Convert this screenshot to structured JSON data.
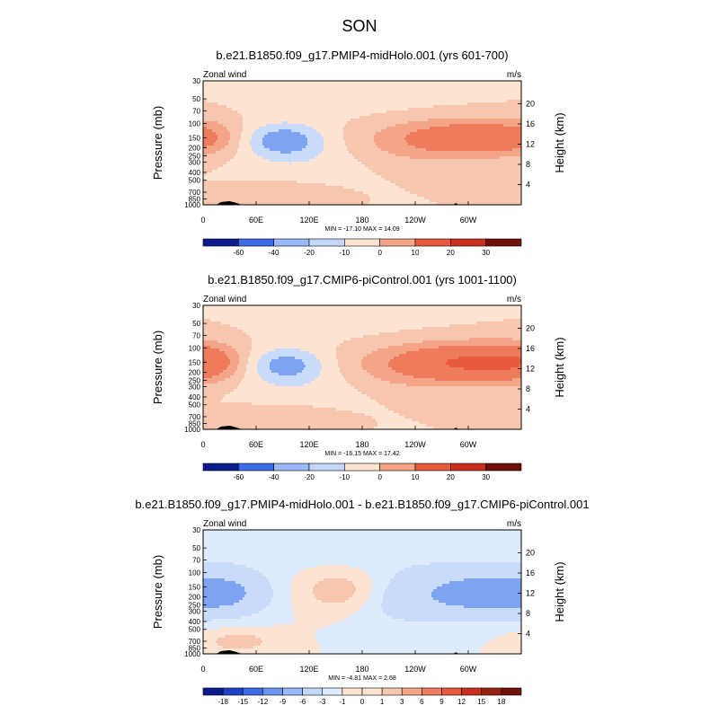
{
  "page": {
    "title": "SON"
  },
  "colors": {
    "full": [
      "#0c1b8c",
      "#1f3fc4",
      "#3d6ae6",
      "#6b95f2",
      "#98b8f7",
      "#c2d7fa",
      "#deebfd",
      "#fde4d2",
      "#f7c6ae",
      "#f4a487",
      "#ee7c5c",
      "#e85a3b",
      "#c8301b",
      "#972012",
      "#6e0f0a"
    ],
    "deep_land": "#000000"
  },
  "chart_data": [
    {
      "type": "heatmap",
      "title": "b.e21.B1850.f09_g17.PMIP4-midHolo.001 (yrs 601-700)",
      "left_string": "Zonal wind",
      "right_string": "m/s",
      "ylabel": "Pressure (mb)",
      "ylabel_right": "Height (km)",
      "x_ticks": [
        "0",
        "60E",
        "120E",
        "180",
        "120W",
        "60W"
      ],
      "x_tick_lons": [
        0,
        60,
        120,
        180,
        240,
        300
      ],
      "xlim": [
        0,
        360
      ],
      "y_ticks": [
        "30",
        "50",
        "70",
        "100",
        "150",
        "200",
        "250",
        "300",
        "400",
        "500",
        "700",
        "850",
        "1000"
      ],
      "y_tick_values": [
        30,
        50,
        70,
        100,
        150,
        200,
        250,
        300,
        400,
        500,
        700,
        850,
        1000
      ],
      "ylim": [
        1000,
        30
      ],
      "height_ticks": [
        "20",
        "16",
        "12",
        "8",
        "4"
      ],
      "height_tick_values": [
        20,
        16,
        12,
        8,
        4
      ],
      "stats": "MIN = -17.10  MAX =  14.09",
      "colorbar": {
        "labels": [
          "-60",
          "-40",
          "-20",
          "-10",
          "0",
          "10",
          "20",
          "30"
        ],
        "levels": [
          -60,
          -40,
          -20,
          -10,
          0,
          10,
          20,
          30
        ]
      },
      "field_levels": [
        -30,
        -20,
        -10,
        -5,
        0,
        5,
        10,
        20,
        30
      ],
      "field_colors": [
        "#2a52be",
        "#4d74e0",
        "#7da3f2",
        "#c8dbfa",
        "#fde4d2",
        "#f7c6ae",
        "#f4a487",
        "#ee7c5c",
        "#e85a3b",
        "#c8301b"
      ],
      "features": [
        {
          "lon": 310,
          "p": 150,
          "amp": 13,
          "slon": 45,
          "sp": 0.35
        },
        {
          "lon": 240,
          "p": 160,
          "amp": 8,
          "slon": 55,
          "sp": 0.45
        },
        {
          "lon": 5,
          "p": 150,
          "amp": 7,
          "slon": 28,
          "sp": 0.35
        },
        {
          "lon": 90,
          "p": 700,
          "amp": 4,
          "slon": 40,
          "sp": 0.25
        },
        {
          "lon": 90,
          "p": 160,
          "amp": -12,
          "slon": 30,
          "sp": 0.32
        },
        {
          "lon": 110,
          "p": 250,
          "amp": -4,
          "slon": 50,
          "sp": 0.6
        },
        {
          "lon": 180,
          "p": 50,
          "amp": -2,
          "slon": 80,
          "sp": 0.5
        }
      ]
    },
    {
      "type": "heatmap",
      "title": "b.e21.B1850.f09_g17.CMIP6-piControl.001 (yrs 1001-1100)",
      "left_string": "Zonal wind",
      "right_string": "m/s",
      "ylabel": "Pressure (mb)",
      "ylabel_right": "Height (km)",
      "x_ticks": [
        "0",
        "60E",
        "120E",
        "180",
        "120W",
        "60W"
      ],
      "x_tick_lons": [
        0,
        60,
        120,
        180,
        240,
        300
      ],
      "xlim": [
        0,
        360
      ],
      "y_ticks": [
        "30",
        "50",
        "70",
        "100",
        "150",
        "200",
        "250",
        "300",
        "400",
        "500",
        "700",
        "850",
        "1000"
      ],
      "y_tick_values": [
        30,
        50,
        70,
        100,
        150,
        200,
        250,
        300,
        400,
        500,
        700,
        850,
        1000
      ],
      "ylim": [
        1000,
        30
      ],
      "height_ticks": [
        "20",
        "16",
        "12",
        "8",
        "4"
      ],
      "height_tick_values": [
        20,
        16,
        12,
        8,
        4
      ],
      "stats": "MIN = -16.15  MAX =  17.42",
      "colorbar": {
        "labels": [
          "-60",
          "-40",
          "-20",
          "-10",
          "0",
          "10",
          "20",
          "30"
        ],
        "levels": [
          -60,
          -40,
          -20,
          -10,
          0,
          10,
          20,
          30
        ]
      },
      "field_levels": [
        -30,
        -20,
        -10,
        -5,
        0,
        5,
        10,
        20,
        30
      ],
      "field_colors": [
        "#2a52be",
        "#4d74e0",
        "#7da3f2",
        "#c8dbfa",
        "#fde4d2",
        "#f7c6ae",
        "#f4a487",
        "#ee7c5c",
        "#e85a3b",
        "#c8301b"
      ],
      "features": [
        {
          "lon": 315,
          "p": 150,
          "amp": 16,
          "slon": 50,
          "sp": 0.38
        },
        {
          "lon": 240,
          "p": 160,
          "amp": 10,
          "slon": 60,
          "sp": 0.45
        },
        {
          "lon": 5,
          "p": 150,
          "amp": 9,
          "slon": 30,
          "sp": 0.38
        },
        {
          "lon": 90,
          "p": 700,
          "amp": 5,
          "slon": 40,
          "sp": 0.25
        },
        {
          "lon": 92,
          "p": 160,
          "amp": -11,
          "slon": 30,
          "sp": 0.32
        },
        {
          "lon": 110,
          "p": 250,
          "amp": -4,
          "slon": 50,
          "sp": 0.6
        },
        {
          "lon": 180,
          "p": 50,
          "amp": -1.5,
          "slon": 80,
          "sp": 0.5
        }
      ]
    },
    {
      "type": "heatmap",
      "title": "b.e21.B1850.f09_g17.PMIP4-midHolo.001 - b.e21.B1850.f09_g17.CMIP6-piControl.001",
      "left_string": "Zonal wind",
      "right_string": "m/s",
      "ylabel": "Pressure (mb)",
      "ylabel_right": "Height (km)",
      "x_ticks": [
        "0",
        "60E",
        "120E",
        "180",
        "120W",
        "60W"
      ],
      "x_tick_lons": [
        0,
        60,
        120,
        180,
        240,
        300
      ],
      "xlim": [
        0,
        360
      ],
      "y_ticks": [
        "30",
        "50",
        "70",
        "100",
        "150",
        "200",
        "250",
        "300",
        "400",
        "500",
        "700",
        "850",
        "1000"
      ],
      "y_tick_values": [
        30,
        50,
        70,
        100,
        150,
        200,
        250,
        300,
        400,
        500,
        700,
        850,
        1000
      ],
      "ylim": [
        1000,
        30
      ],
      "height_ticks": [
        "20",
        "16",
        "12",
        "8",
        "4"
      ],
      "height_tick_values": [
        20,
        16,
        12,
        8,
        4
      ],
      "stats": "MIN = -4.81  MAX =   2.68",
      "colorbar": {
        "labels": [
          "-18",
          "-15",
          "-12",
          "-9",
          "-6",
          "-3",
          "-1",
          "0",
          "1",
          "3",
          "6",
          "9",
          "12",
          "15",
          "18"
        ],
        "levels": [
          -18,
          -15,
          -12,
          -9,
          -6,
          -3,
          -1,
          0,
          1,
          3,
          6,
          9,
          12,
          15,
          18
        ]
      },
      "field_levels": [
        -3,
        -1,
        0,
        1,
        3
      ],
      "field_colors": [
        "#7da3f2",
        "#c8dbfa",
        "#deebfd",
        "#fde4d2",
        "#f7c6ae",
        "#f4a487"
      ],
      "features": [
        {
          "lon": 25,
          "p": 180,
          "amp": -3.5,
          "slon": 35,
          "sp": 0.45
        },
        {
          "lon": 310,
          "p": 180,
          "amp": -3.6,
          "slon": 40,
          "sp": 0.45
        },
        {
          "lon": 220,
          "p": 200,
          "amp": -2.0,
          "slon": 50,
          "sp": 0.55
        },
        {
          "lon": 160,
          "p": 170,
          "amp": 2.4,
          "slon": 35,
          "sp": 0.45
        },
        {
          "lon": 40,
          "p": 700,
          "amp": 1.5,
          "slon": 30,
          "sp": 0.25
        },
        {
          "lon": 180,
          "p": 40,
          "amp": -0.8,
          "slon": 200,
          "sp": 0.6
        }
      ]
    }
  ]
}
